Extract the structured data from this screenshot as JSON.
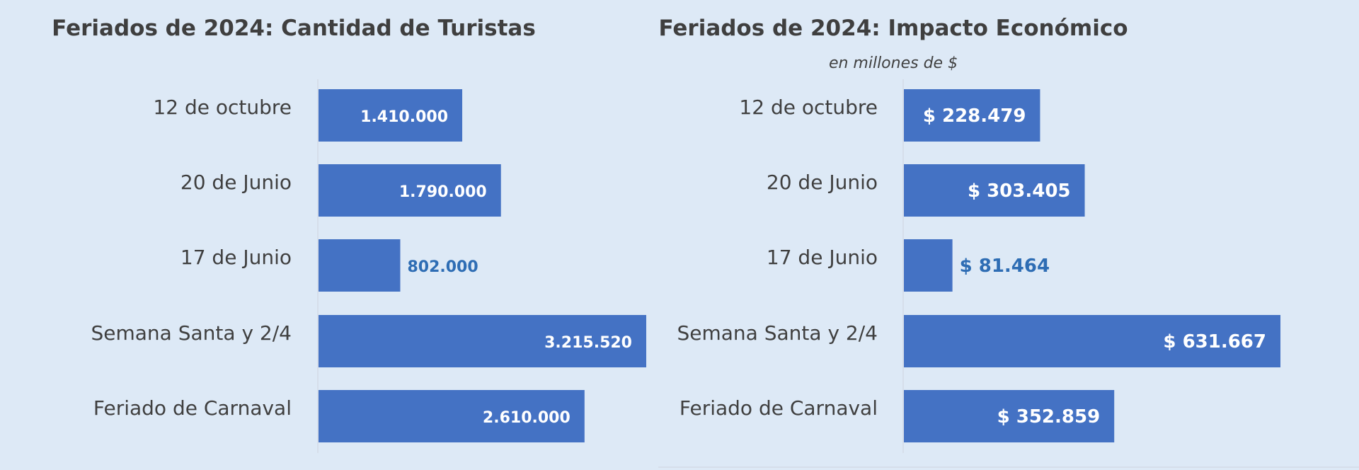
{
  "chart_data": [
    {
      "type": "bar",
      "orientation": "horizontal",
      "title": "Feriados de 2024: Cantidad de Turistas",
      "subtitle": "",
      "categories": [
        "12 de octubre",
        "20 de Junio",
        "17 de Junio",
        "Semana Santa y 2/4",
        "Feriado de Carnaval"
      ],
      "values": [
        1410000,
        1790000,
        802000,
        3215520,
        2610000
      ],
      "labels": [
        "1.410.000",
        "1.790.000",
        "802.000",
        "3.215.520",
        "2.610.000"
      ],
      "xlim": [
        0,
        3215520
      ],
      "grid": false,
      "bar_color": "#4472c4"
    },
    {
      "type": "bar",
      "orientation": "horizontal",
      "title": "Feriados de 2024: Impacto Económico",
      "subtitle": "en millones de $",
      "categories": [
        "12 de octubre",
        "20 de Junio",
        "17 de Junio",
        "Semana Santa y 2/4",
        "Feriado de Carnaval"
      ],
      "values": [
        228479,
        303405,
        81464,
        631667,
        352859
      ],
      "labels": [
        "$ 228.479",
        "$ 303.405",
        "$ 81.464",
        "$ 631.667",
        "$ 352.859"
      ],
      "xlim": [
        0,
        631667
      ],
      "grid": false,
      "bar_color": "#4472c4"
    }
  ]
}
